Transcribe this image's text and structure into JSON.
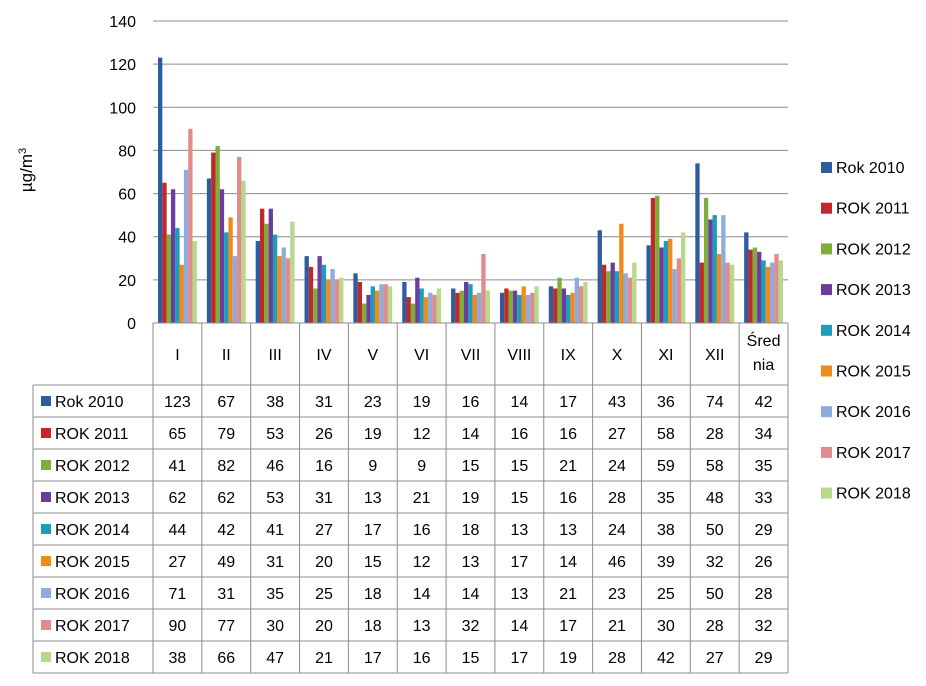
{
  "chart_data": {
    "type": "bar",
    "ylabel_main": "µg/m",
    "ylabel_sup": "3",
    "ylim": [
      0,
      140
    ],
    "yticks": [
      "0",
      "20",
      "40",
      "60",
      "80",
      "100",
      "120",
      "140"
    ],
    "grid": true,
    "legend_position": "right",
    "categories": [
      "I",
      "II",
      "III",
      "IV",
      "V",
      "VI",
      "VII",
      "VIII",
      "IX",
      "X",
      "XI",
      "XII",
      "Średnia"
    ],
    "category_lines": [
      [
        "I"
      ],
      [
        "II"
      ],
      [
        "III"
      ],
      [
        "IV"
      ],
      [
        "V"
      ],
      [
        "VI"
      ],
      [
        "VII"
      ],
      [
        "VIII"
      ],
      [
        "IX"
      ],
      [
        "X"
      ],
      [
        "XI"
      ],
      [
        "XII"
      ],
      [
        "Śred",
        "nia"
      ]
    ],
    "series": [
      {
        "name": "Rok 2010",
        "color": "#2E5C9E",
        "values": [
          123,
          67,
          38,
          31,
          23,
          19,
          16,
          14,
          17,
          43,
          36,
          74,
          42
        ]
      },
      {
        "name": "ROK 2011",
        "color": "#C0282A",
        "values": [
          65,
          79,
          53,
          26,
          19,
          12,
          14,
          16,
          16,
          27,
          58,
          28,
          34
        ]
      },
      {
        "name": "ROK 2012",
        "color": "#7FAD3A",
        "values": [
          41,
          82,
          46,
          16,
          9,
          9,
          15,
          15,
          21,
          24,
          59,
          58,
          35
        ]
      },
      {
        "name": "ROK 2013",
        "color": "#6A3E9C",
        "values": [
          62,
          62,
          53,
          31,
          13,
          21,
          19,
          15,
          16,
          28,
          35,
          48,
          33
        ]
      },
      {
        "name": "ROK 2014",
        "color": "#1E9CB8",
        "values": [
          44,
          42,
          41,
          27,
          17,
          16,
          18,
          13,
          13,
          24,
          38,
          50,
          29
        ]
      },
      {
        "name": "ROK 2015",
        "color": "#F08A1E",
        "values": [
          27,
          49,
          31,
          20,
          15,
          12,
          13,
          17,
          14,
          46,
          39,
          32,
          26
        ]
      },
      {
        "name": "ROK 2016",
        "color": "#8FAADC",
        "values": [
          71,
          31,
          35,
          25,
          18,
          14,
          14,
          13,
          21,
          23,
          25,
          50,
          28
        ]
      },
      {
        "name": "ROK 2017",
        "color": "#E08C8C",
        "values": [
          90,
          77,
          30,
          20,
          18,
          13,
          32,
          14,
          17,
          21,
          30,
          28,
          32
        ]
      },
      {
        "name": "ROK 2018",
        "color": "#B8D98C",
        "values": [
          38,
          66,
          47,
          21,
          17,
          16,
          15,
          17,
          19,
          28,
          42,
          27,
          29
        ]
      }
    ]
  }
}
